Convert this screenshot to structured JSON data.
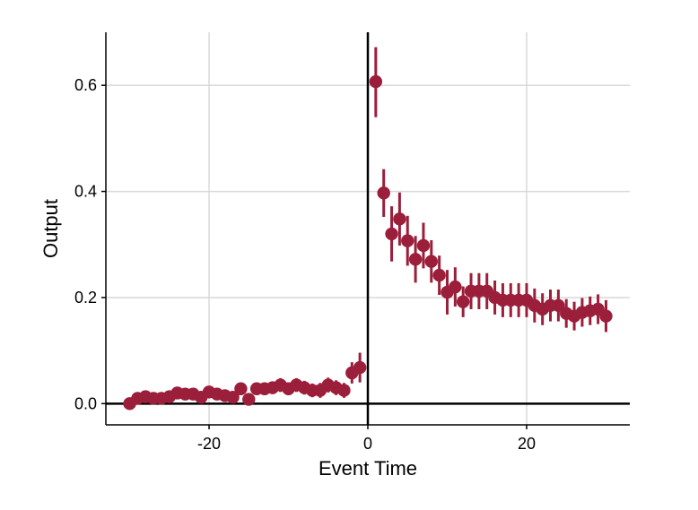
{
  "chart_data": {
    "type": "scatter",
    "title": "",
    "xlabel": "Event Time",
    "ylabel": "Output",
    "xlim": [
      -33,
      33
    ],
    "ylim": [
      -0.04,
      0.7
    ],
    "xticks": [
      -20,
      0,
      20
    ],
    "xtick_labels": [
      "-20",
      "0",
      "20"
    ],
    "yticks": [
      0.0,
      0.2,
      0.4,
      0.6
    ],
    "ytick_labels": [
      "0.0",
      "0.2",
      "0.4",
      "0.6"
    ],
    "grid": true,
    "reference_lines": {
      "x": 0,
      "y": 0
    },
    "color": "#9b1e3a",
    "series": [
      {
        "x": [
          -30,
          -29,
          -28,
          -27,
          -26,
          -25,
          -24,
          -23,
          -22,
          -21,
          -20,
          -19,
          -18,
          -17,
          -16,
          -15,
          -14,
          -13,
          -12,
          -11,
          -10,
          -9,
          -8,
          -7,
          -6,
          -5,
          -4,
          -3,
          -2,
          -1,
          1,
          2,
          3,
          4,
          5,
          6,
          7,
          8,
          9,
          10,
          11,
          12,
          13,
          14,
          15,
          16,
          17,
          18,
          19,
          20,
          21,
          22,
          23,
          24,
          25,
          26,
          27,
          28,
          29,
          30
        ],
        "y": [
          0.0,
          0.01,
          0.013,
          0.01,
          0.01,
          0.013,
          0.02,
          0.018,
          0.018,
          0.012,
          0.022,
          0.018,
          0.015,
          0.012,
          0.028,
          0.008,
          0.028,
          0.028,
          0.03,
          0.035,
          0.028,
          0.035,
          0.03,
          0.025,
          0.025,
          0.035,
          0.03,
          0.025,
          0.058,
          0.068,
          0.607,
          0.397,
          0.32,
          0.348,
          0.307,
          0.272,
          0.298,
          0.268,
          0.242,
          0.21,
          0.22,
          0.192,
          0.212,
          0.212,
          0.212,
          0.2,
          0.195,
          0.195,
          0.195,
          0.195,
          0.185,
          0.178,
          0.185,
          0.185,
          0.17,
          0.165,
          0.172,
          0.175,
          0.178,
          0.165
        ],
        "ci_low": [
          -0.003,
          0.001,
          0.004,
          0.001,
          0.001,
          0.004,
          0.009,
          0.008,
          0.008,
          0.002,
          0.011,
          0.008,
          0.004,
          0.002,
          0.016,
          -0.003,
          0.016,
          0.016,
          0.018,
          0.022,
          0.016,
          0.022,
          0.017,
          0.012,
          0.011,
          0.021,
          0.016,
          0.011,
          0.038,
          0.04,
          0.54,
          0.352,
          0.268,
          0.298,
          0.26,
          0.228,
          0.255,
          0.228,
          0.205,
          0.168,
          0.183,
          0.163,
          0.178,
          0.178,
          0.178,
          0.168,
          0.163,
          0.163,
          0.163,
          0.163,
          0.153,
          0.148,
          0.155,
          0.155,
          0.143,
          0.138,
          0.145,
          0.148,
          0.15,
          0.135
        ],
        "ci_high": [
          0.003,
          0.019,
          0.022,
          0.019,
          0.019,
          0.022,
          0.031,
          0.028,
          0.028,
          0.022,
          0.033,
          0.028,
          0.026,
          0.022,
          0.04,
          0.019,
          0.04,
          0.04,
          0.042,
          0.048,
          0.04,
          0.048,
          0.043,
          0.038,
          0.039,
          0.049,
          0.044,
          0.039,
          0.078,
          0.096,
          0.672,
          0.442,
          0.372,
          0.398,
          0.354,
          0.316,
          0.341,
          0.308,
          0.279,
          0.252,
          0.257,
          0.221,
          0.246,
          0.246,
          0.246,
          0.232,
          0.227,
          0.227,
          0.227,
          0.227,
          0.217,
          0.208,
          0.215,
          0.215,
          0.197,
          0.192,
          0.199,
          0.202,
          0.206,
          0.195
        ]
      }
    ]
  }
}
